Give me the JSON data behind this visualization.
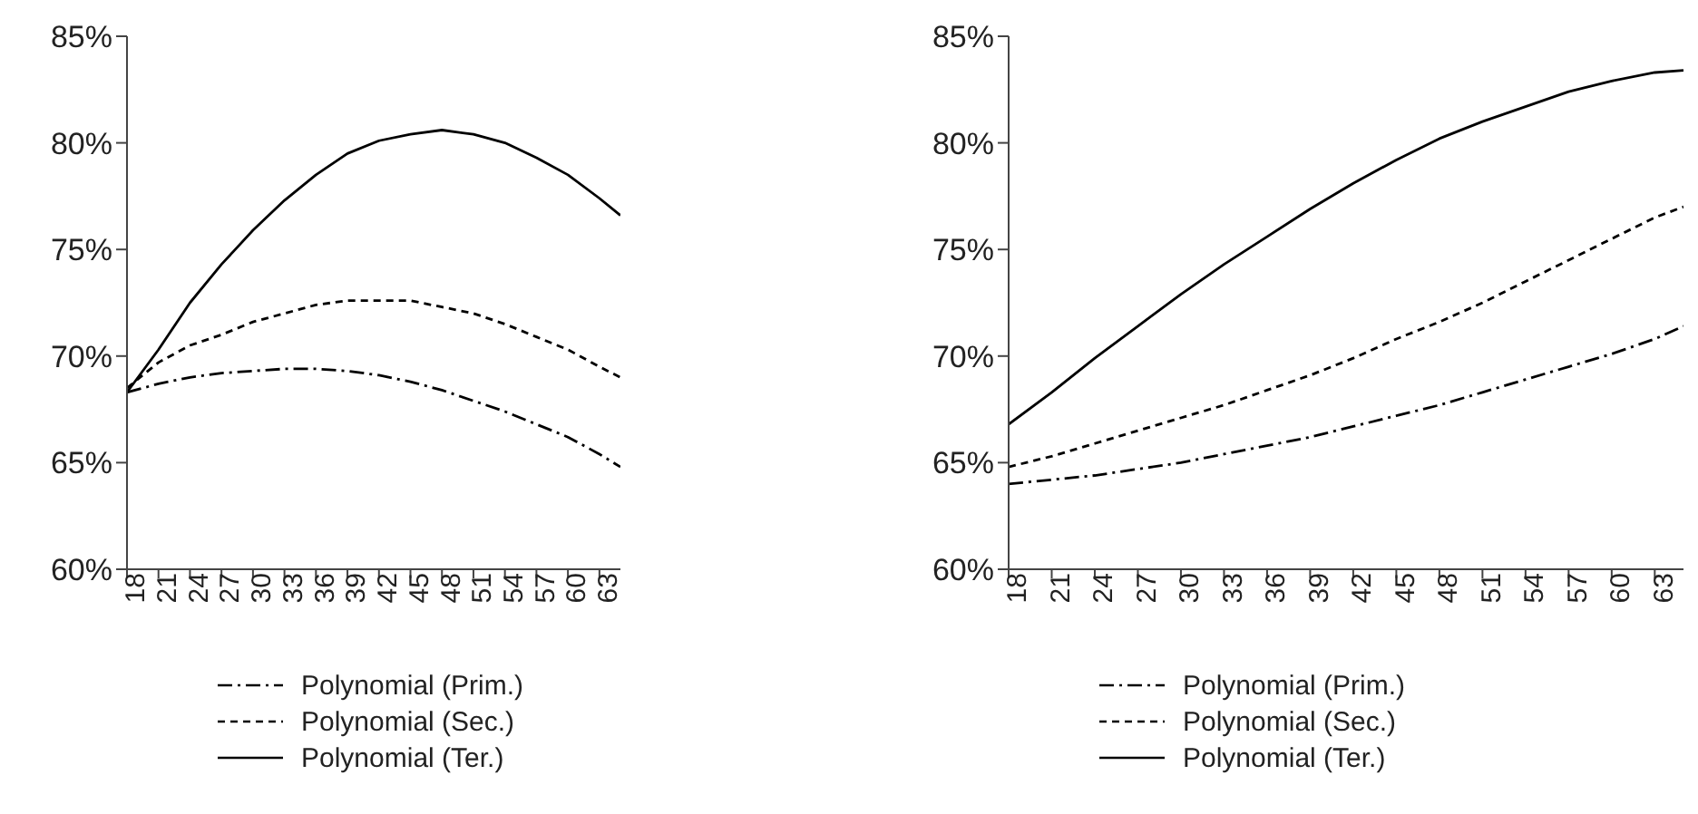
{
  "chart_data": [
    {
      "type": "line",
      "x": [
        18,
        21,
        24,
        27,
        30,
        33,
        36,
        39,
        42,
        45,
        48,
        51,
        54,
        57,
        60,
        63,
        65
      ],
      "xlim": [
        18,
        65
      ],
      "xticks": [
        18,
        21,
        24,
        27,
        30,
        33,
        36,
        39,
        42,
        45,
        48,
        51,
        54,
        57,
        60,
        63
      ],
      "ylim": [
        60,
        85
      ],
      "yticks": [
        {
          "value": 60,
          "label": "60%"
        },
        {
          "value": 65,
          "label": "65%"
        },
        {
          "value": 70,
          "label": "70%"
        },
        {
          "value": 75,
          "label": "75%"
        },
        {
          "value": 80,
          "label": "80%"
        },
        {
          "value": 85,
          "label": "85%"
        }
      ],
      "grid": false,
      "legend": "bottom",
      "marker": "none",
      "series": [
        {
          "name": "Polynomial (Prim.)",
          "color": "#000000",
          "line_style": "dotted",
          "values": [
            68.3,
            68.7,
            69.0,
            69.2,
            69.3,
            69.4,
            69.4,
            69.3,
            69.1,
            68.8,
            68.4,
            67.9,
            67.4,
            66.8,
            66.2,
            65.4,
            64.8
          ]
        },
        {
          "name": "Polynomial (Sec.)",
          "color": "#000000",
          "line_style": "dashed",
          "values": [
            68.5,
            69.7,
            70.5,
            71.0,
            71.6,
            72.0,
            72.4,
            72.6,
            72.6,
            72.6,
            72.3,
            72.0,
            71.5,
            70.9,
            70.3,
            69.5,
            69.0
          ]
        },
        {
          "name": "Polynomial (Ter.)",
          "color": "#000000",
          "line_style": "solid",
          "values": [
            68.3,
            70.3,
            72.5,
            74.3,
            75.9,
            77.3,
            78.5,
            79.5,
            80.1,
            80.4,
            80.6,
            80.4,
            80.0,
            79.3,
            78.5,
            77.4,
            76.6
          ]
        }
      ]
    },
    {
      "type": "line",
      "x": [
        18,
        21,
        24,
        27,
        30,
        33,
        36,
        39,
        42,
        45,
        48,
        51,
        54,
        57,
        60,
        63,
        65
      ],
      "xlim": [
        18,
        65
      ],
      "xticks": [
        18,
        21,
        24,
        27,
        30,
        33,
        36,
        39,
        42,
        45,
        48,
        51,
        54,
        57,
        60,
        63
      ],
      "ylim": [
        60,
        85
      ],
      "yticks": [
        {
          "value": 60,
          "label": "60%"
        },
        {
          "value": 65,
          "label": "65%"
        },
        {
          "value": 70,
          "label": "70%"
        },
        {
          "value": 75,
          "label": "75%"
        },
        {
          "value": 80,
          "label": "80%"
        },
        {
          "value": 85,
          "label": "85%"
        }
      ],
      "grid": false,
      "legend": "bottom",
      "marker": "none",
      "series": [
        {
          "name": "Polynomial (Prim.)",
          "color": "#000000",
          "line_style": "dotted",
          "values": [
            64.0,
            64.2,
            64.4,
            64.7,
            65.0,
            65.4,
            65.8,
            66.2,
            66.7,
            67.2,
            67.7,
            68.3,
            68.9,
            69.5,
            70.1,
            70.8,
            71.4
          ]
        },
        {
          "name": "Polynomial (Sec.)",
          "color": "#000000",
          "line_style": "dashed",
          "values": [
            64.8,
            65.3,
            65.9,
            66.5,
            67.1,
            67.7,
            68.4,
            69.1,
            69.9,
            70.8,
            71.6,
            72.5,
            73.5,
            74.5,
            75.5,
            76.5,
            77.0
          ]
        },
        {
          "name": "Polynomial (Ter.)",
          "color": "#000000",
          "line_style": "solid",
          "values": [
            66.8,
            68.3,
            69.9,
            71.4,
            72.9,
            74.3,
            75.6,
            76.9,
            78.1,
            79.2,
            80.2,
            81.0,
            81.7,
            82.4,
            82.9,
            83.3,
            83.4
          ]
        }
      ]
    }
  ]
}
